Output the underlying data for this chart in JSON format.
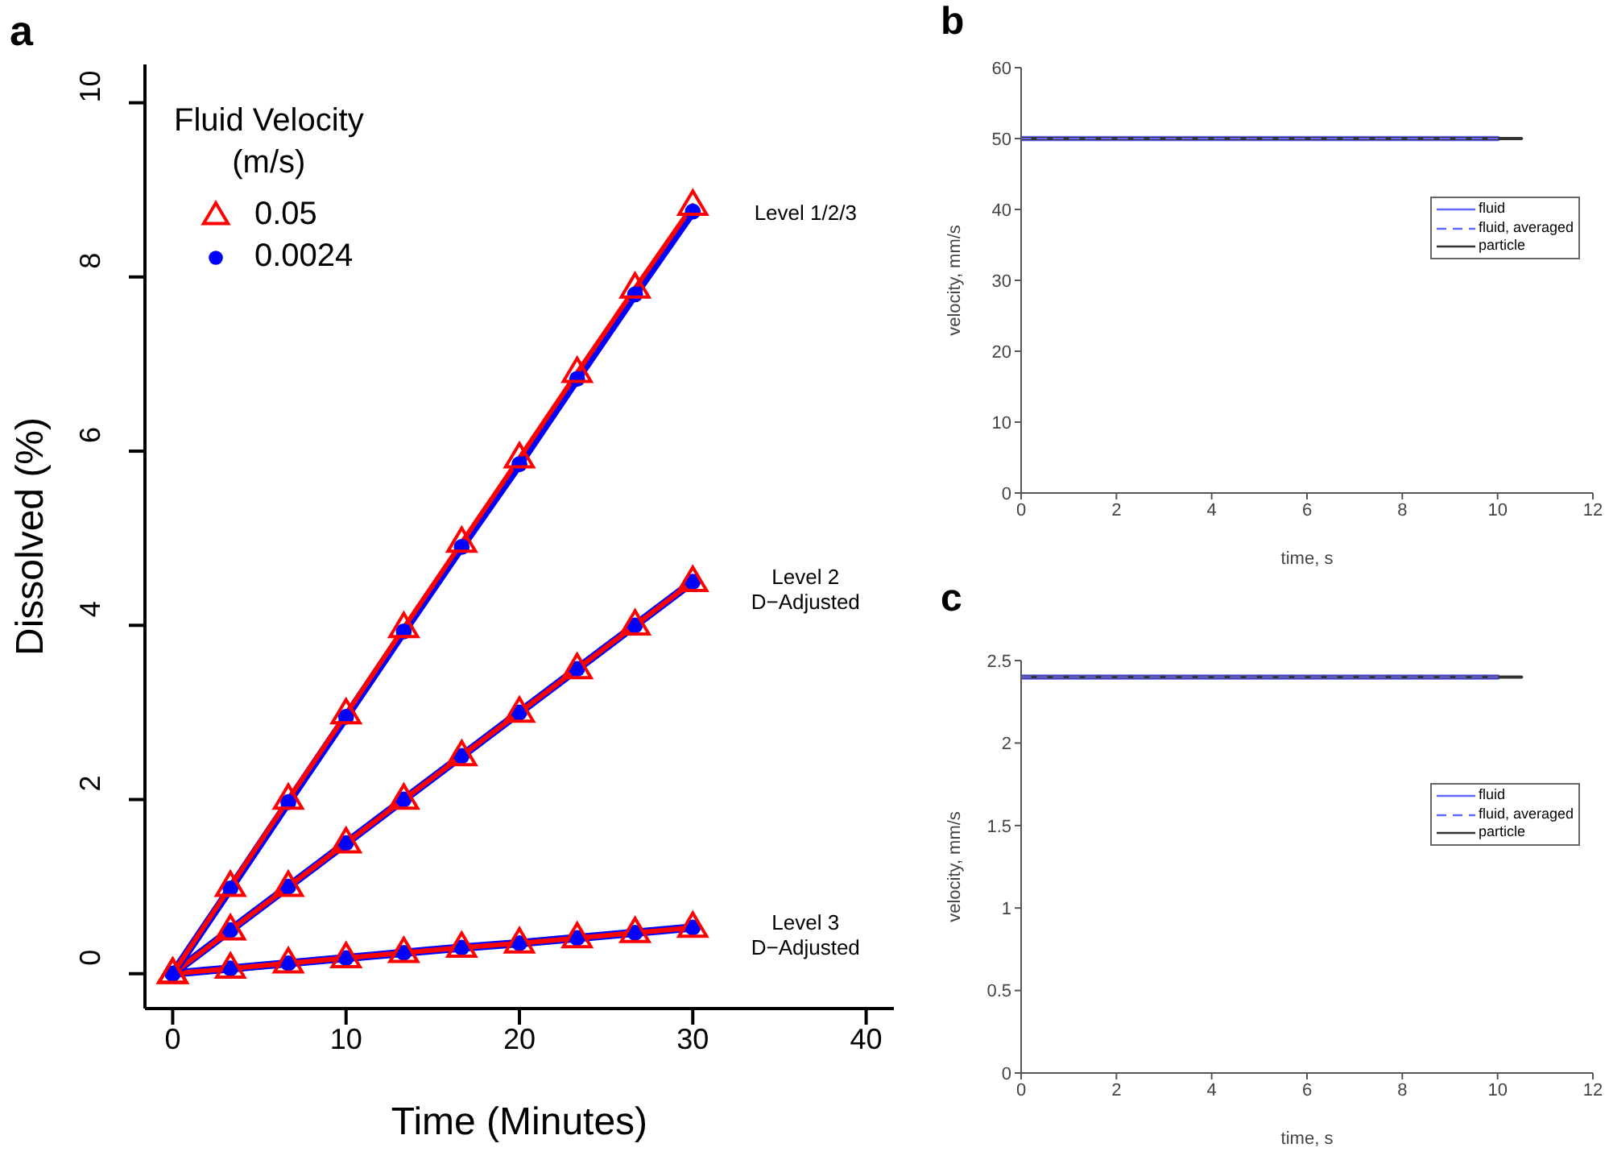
{
  "chart_data": [
    {
      "type": "line",
      "title": "a",
      "xlabel": "Time (Minutes)",
      "ylabel": "Dissolved (%)",
      "legend_title": "Fluid Velocity\n(m/s)",
      "legend": "top left",
      "x": [
        0,
        3.33,
        6.67,
        10,
        13.33,
        16.67,
        20,
        23.33,
        26.67,
        30
      ],
      "xlim": [
        -1.6,
        41.6
      ],
      "xticks": [
        0,
        10,
        20,
        30,
        40
      ],
      "ylim": [
        -0.4,
        10.44
      ],
      "yticks": [
        0,
        2,
        4,
        6,
        8,
        10
      ],
      "series": [
        {
          "name": "0.05",
          "color": "#ff0000",
          "marker": "triangle",
          "values": [
            0,
            1,
            2,
            2.98,
            3.97,
            4.95,
            5.92,
            6.9,
            7.87,
            8.82
          ]
        },
        {
          "name": "0.0024",
          "color": "#0000ff",
          "marker": "circle",
          "values": [
            0,
            0.98,
            1.97,
            2.95,
            3.93,
            4.9,
            5.85,
            6.83,
            7.8,
            8.75
          ]
        },
        {
          "color": "#ff0000",
          "marker": "triangle",
          "values": [
            0,
            0.5,
            1,
            1.5,
            2,
            2.5,
            3,
            3.5,
            4,
            4.5
          ]
        },
        {
          "color": "#0000ff",
          "marker": "circle",
          "values": [
            0,
            0.5,
            1,
            1.5,
            2,
            2.5,
            3,
            3.5,
            4,
            4.5
          ]
        },
        {
          "color": "#ff0000",
          "marker": "triangle",
          "values": [
            0,
            0.06,
            0.12,
            0.18,
            0.24,
            0.3,
            0.35,
            0.41,
            0.47,
            0.53
          ]
        },
        {
          "color": "#0000ff",
          "marker": "circle",
          "values": [
            0,
            0.06,
            0.12,
            0.18,
            0.24,
            0.3,
            0.35,
            0.41,
            0.47,
            0.53
          ]
        }
      ],
      "annotations": [
        "Level 1/2/3",
        "Level 2\nD−Adjusted",
        "Level 3\nD−Adjusted"
      ]
    },
    {
      "type": "line",
      "title": "b",
      "xlabel": "time, s",
      "ylabel": "velocity, mm/s",
      "legend": "right",
      "xlim": [
        0,
        12
      ],
      "xticks": [
        0,
        2,
        4,
        6,
        8,
        10,
        12
      ],
      "ylim": [
        0,
        60
      ],
      "yticks": [
        0,
        10,
        20,
        30,
        40,
        50,
        60
      ],
      "series": [
        {
          "name": "fluid",
          "color": "#6666ff",
          "line_style": "solid",
          "x": [
            0,
            10
          ],
          "values": [
            50,
            50
          ]
        },
        {
          "name": "fluid, averaged",
          "color": "#6666ff",
          "line_style": "dashed",
          "x": [
            0,
            10
          ],
          "values": [
            50,
            50
          ]
        },
        {
          "name": "particle",
          "color": "#333333",
          "line_style": "solid",
          "x": [
            0,
            10.5
          ],
          "values": [
            50,
            50
          ]
        }
      ]
    },
    {
      "type": "line",
      "title": "c",
      "xlabel": "time, s",
      "ylabel": "velocity, mm/s",
      "legend": "right",
      "xlim": [
        0,
        12
      ],
      "xticks": [
        0,
        2,
        4,
        6,
        8,
        10,
        12
      ],
      "ylim": [
        0,
        2.5
      ],
      "yticks": [
        0,
        0.5,
        1,
        1.5,
        2,
        2.5
      ],
      "series": [
        {
          "name": "fluid",
          "color": "#6666ff",
          "line_style": "solid",
          "x": [
            0,
            10
          ],
          "values": [
            2.4,
            2.4
          ]
        },
        {
          "name": "fluid, averaged",
          "color": "#6666ff",
          "line_style": "dashed",
          "x": [
            0,
            10
          ],
          "values": [
            2.4,
            2.4
          ]
        },
        {
          "name": "particle",
          "color": "#333333",
          "line_style": "solid",
          "x": [
            0,
            10.5
          ],
          "values": [
            2.4,
            2.4
          ]
        }
      ]
    }
  ]
}
